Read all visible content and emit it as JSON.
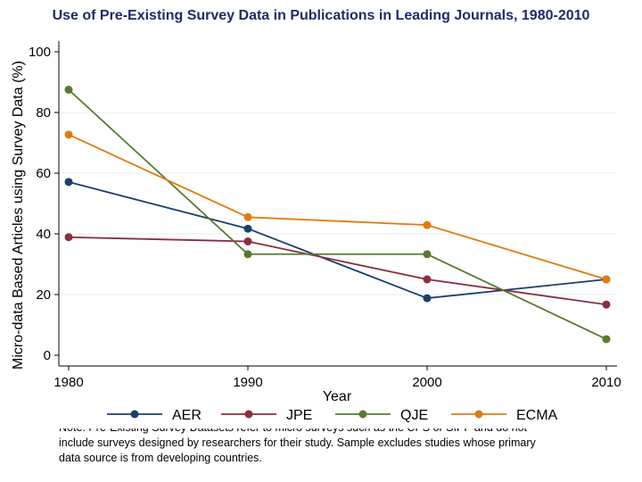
{
  "chart_data": {
    "type": "line",
    "title": "Use of Pre-Existing Survey Data in Publications in Leading Journals, 1980-2010",
    "xlabel": "Year",
    "ylabel": "Micro-data Based Articles using Survey Data (%)",
    "x": [
      1980,
      1990,
      2000,
      2010
    ],
    "x_ticks": [
      "1980",
      "1990",
      "2000",
      "2010"
    ],
    "y_ticks": [
      "0",
      "20",
      "40",
      "60",
      "80",
      "100"
    ],
    "ylim": [
      0,
      100
    ],
    "xlim": [
      1980,
      2010
    ],
    "grid": true,
    "legend_position": "bottom",
    "series": [
      {
        "name": "AER",
        "color": "#1a3f6b",
        "values": [
          57.1,
          41.7,
          18.8,
          25.0
        ]
      },
      {
        "name": "JPE",
        "color": "#8b2e3e",
        "values": [
          38.9,
          37.5,
          25.0,
          16.7
        ]
      },
      {
        "name": "QJE",
        "color": "#587a2e",
        "values": [
          87.5,
          33.3,
          33.3,
          5.3
        ]
      },
      {
        "name": "ECMA",
        "color": "#e07b0e",
        "values": [
          72.7,
          45.5,
          42.9,
          25.0
        ]
      }
    ]
  },
  "note": {
    "cut_line": "Note: Pre-Existing Survey Datasets refer to micro surveys such as the CPS or SIPP and do not",
    "lines": [
      "include surveys designed by researchers for their study.  Sample excludes studies whose primary",
      "data source is from developing countries."
    ]
  }
}
